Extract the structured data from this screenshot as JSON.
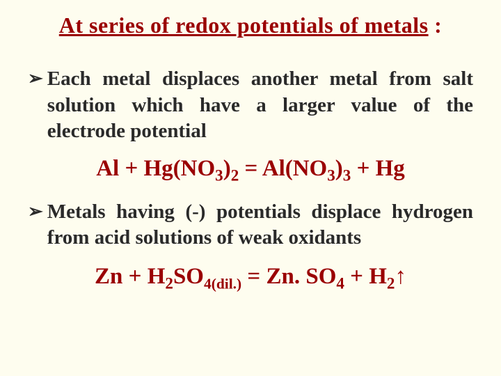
{
  "colors": {
    "background": "#fefdef",
    "title_color": "#9a0002",
    "text_color": "#2a2a2a",
    "equation_color": "#9a0002",
    "bullet_arrow_color": "#2a2a2a"
  },
  "title_part1": "At series of redox potentials of metals",
  "title_part2": " :",
  "bullets": [
    {
      "text": "Each metal displaces another metal from salt solution which have a larger value of the electrode potential"
    },
    {
      "text": "Metals having (-) potentials displace hydrogen from acid solutions of weak oxidants"
    }
  ],
  "equation1": {
    "parts": [
      "Al + Hg(NO",
      "3",
      ")",
      "2",
      " = Al(NO",
      "3",
      ")",
      "3",
      " + Hg"
    ]
  },
  "equation2": {
    "parts": [
      "Zn + H",
      "2",
      "SO",
      "4(dil.)",
      " = Zn. SO",
      "4",
      " + H",
      "2",
      "↑"
    ]
  }
}
